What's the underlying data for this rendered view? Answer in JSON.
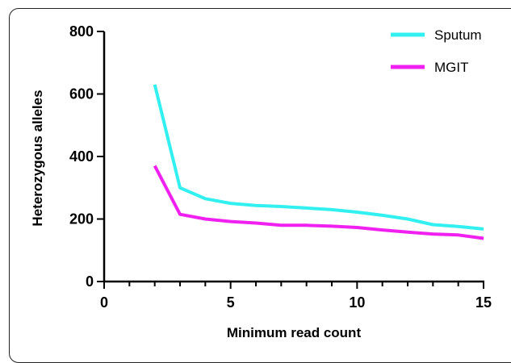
{
  "chart_data": {
    "type": "line",
    "title": "",
    "xlabel": "Minimum read count",
    "ylabel": "Heterozygous alleles",
    "xlim": [
      0,
      15
    ],
    "ylim": [
      0,
      800
    ],
    "x_ticks": [
      0,
      5,
      10,
      15
    ],
    "y_ticks": [
      0,
      200,
      400,
      600,
      800
    ],
    "x_tick_labels": [
      "0",
      "5",
      "10",
      "15"
    ],
    "y_tick_labels": [
      "0",
      "200",
      "400",
      "600",
      "800"
    ],
    "grid": false,
    "legend_position": "top-right",
    "x": [
      2,
      3,
      4,
      5,
      6,
      7,
      8,
      9,
      10,
      11,
      12,
      13,
      14,
      15
    ],
    "series": [
      {
        "name": "Sputum",
        "color": "#33f0f0",
        "values": [
          630,
          300,
          265,
          250,
          243,
          240,
          235,
          230,
          222,
          212,
          200,
          182,
          176,
          168
        ]
      },
      {
        "name": "MGIT",
        "color": "#f020f0",
        "values": [
          370,
          215,
          200,
          192,
          187,
          180,
          180,
          177,
          173,
          165,
          158,
          152,
          149,
          138
        ]
      }
    ]
  }
}
